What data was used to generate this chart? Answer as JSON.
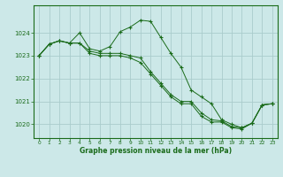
{
  "title": "Graphe pression niveau de la mer (hPa)",
  "bg_color": "#cce8e8",
  "grid_color": "#aacccc",
  "line_color": "#1a6b1a",
  "xlim": [
    -0.5,
    23.5
  ],
  "ylim": [
    1019.4,
    1025.2
  ],
  "yticks": [
    1020,
    1021,
    1022,
    1023,
    1024
  ],
  "xticks": [
    0,
    1,
    2,
    3,
    4,
    5,
    6,
    7,
    8,
    9,
    10,
    11,
    12,
    13,
    14,
    15,
    16,
    17,
    18,
    19,
    20,
    21,
    22,
    23
  ],
  "series": [
    {
      "x": [
        0,
        1,
        2,
        3,
        4,
        5,
        6,
        7,
        8,
        9,
        10,
        11,
        12,
        13,
        14,
        15,
        16,
        17,
        18,
        19,
        20,
        21,
        22,
        23
      ],
      "y": [
        1023.0,
        1023.5,
        1023.65,
        1023.55,
        1024.0,
        1023.3,
        1023.2,
        1023.4,
        1024.05,
        1024.25,
        1024.55,
        1024.5,
        1023.8,
        1023.1,
        1022.5,
        1021.5,
        1021.2,
        1020.9,
        1020.2,
        1020.0,
        1019.85,
        1020.05,
        1020.85,
        1020.9
      ]
    },
    {
      "x": [
        0,
        1,
        2,
        3,
        4,
        5,
        6,
        7,
        8,
        9,
        10,
        11,
        12,
        13,
        14,
        15,
        16,
        17,
        18,
        19,
        20,
        21,
        22,
        23
      ],
      "y": [
        1023.0,
        1023.5,
        1023.65,
        1023.55,
        1023.55,
        1023.2,
        1023.1,
        1023.1,
        1023.1,
        1023.0,
        1022.9,
        1022.3,
        1021.8,
        1021.3,
        1021.0,
        1021.0,
        1020.5,
        1020.2,
        1020.15,
        1019.9,
        1019.85,
        1020.05,
        1020.85,
        1020.9
      ]
    },
    {
      "x": [
        0,
        1,
        2,
        3,
        4,
        5,
        6,
        7,
        8,
        9,
        10,
        11,
        12,
        13,
        14,
        15,
        16,
        17,
        18,
        19,
        20,
        21,
        22,
        23
      ],
      "y": [
        1023.0,
        1023.5,
        1023.65,
        1023.55,
        1023.55,
        1023.1,
        1023.0,
        1023.0,
        1023.0,
        1022.9,
        1022.7,
        1022.2,
        1021.7,
        1021.2,
        1020.9,
        1020.9,
        1020.35,
        1020.1,
        1020.1,
        1019.85,
        1019.8,
        1020.05,
        1020.85,
        1020.9
      ]
    }
  ]
}
